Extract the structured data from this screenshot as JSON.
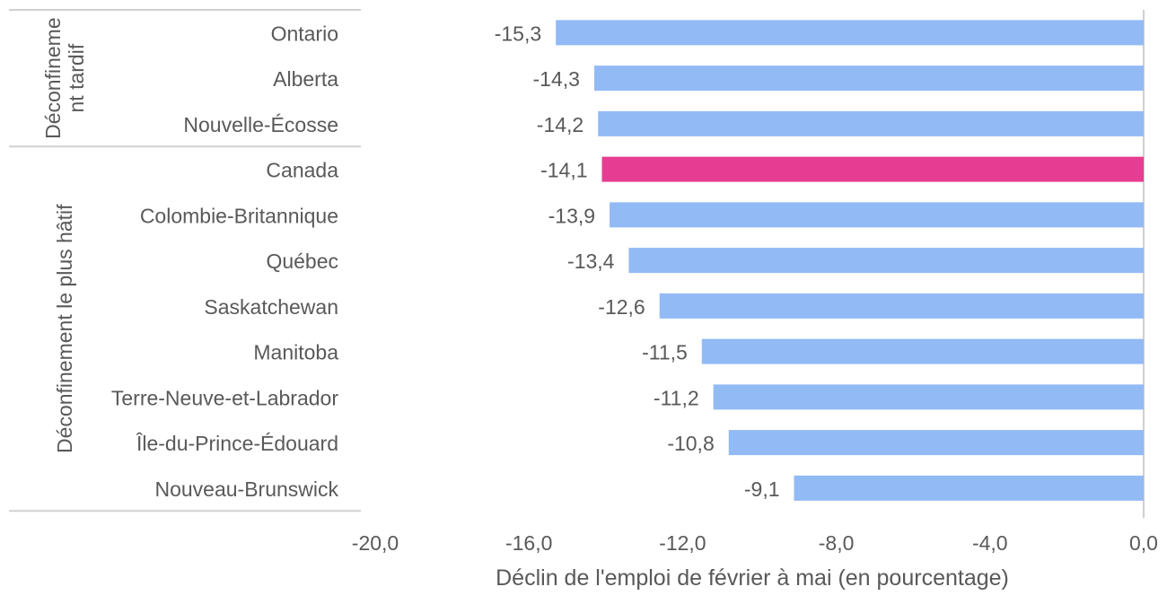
{
  "chart_data": {
    "type": "bar",
    "orientation": "horizontal",
    "title": "",
    "xlabel": "Déclin de l'emploi de février à mai (en pourcentage)",
    "ylabel": "",
    "xlim": [
      -20,
      0
    ],
    "xticks": [
      -20,
      -16,
      -12,
      -8,
      -4,
      0
    ],
    "xtick_labels": [
      "-20,0",
      "-16,0",
      "-12,0",
      "-8,0",
      "-4,0",
      "0,0"
    ],
    "grid": false,
    "legend": "none",
    "groups": [
      {
        "label_lines": [
          "Déconfineme",
          "nt tardif"
        ],
        "items": [
          {
            "name": "Ontario",
            "value": -15.3,
            "label": "-15,3",
            "highlight": false
          },
          {
            "name": "Alberta",
            "value": -14.3,
            "label": "-14,3",
            "highlight": false
          },
          {
            "name": "Nouvelle-Écosse",
            "value": -14.2,
            "label": "-14,2",
            "highlight": false
          }
        ]
      },
      {
        "label_lines": [
          "Déconfinement le plus hâtif"
        ],
        "items": [
          {
            "name": "Canada",
            "value": -14.1,
            "label": "-14,1",
            "highlight": true
          },
          {
            "name": "Colombie-Britannique",
            "value": -13.9,
            "label": "-13,9",
            "highlight": false
          },
          {
            "name": "Québec",
            "value": -13.4,
            "label": "-13,4",
            "highlight": false
          },
          {
            "name": "Saskatchewan",
            "value": -12.6,
            "label": "-12,6",
            "highlight": false
          },
          {
            "name": "Manitoba",
            "value": -11.5,
            "label": "-11,5",
            "highlight": false
          },
          {
            "name": "Terre-Neuve-et-Labrador",
            "value": -11.2,
            "label": "-11,2",
            "highlight": false
          },
          {
            "name": "Île-du-Prince-Édouard",
            "value": -10.8,
            "label": "-10,8",
            "highlight": false
          },
          {
            "name": "Nouveau-Brunswick",
            "value": -9.1,
            "label": "-9,1",
            "highlight": false
          }
        ]
      }
    ],
    "colors": {
      "bar": "#92baf5",
      "highlight": "#e63d92",
      "text": "#595959",
      "axis": "#d0d0d0"
    }
  }
}
